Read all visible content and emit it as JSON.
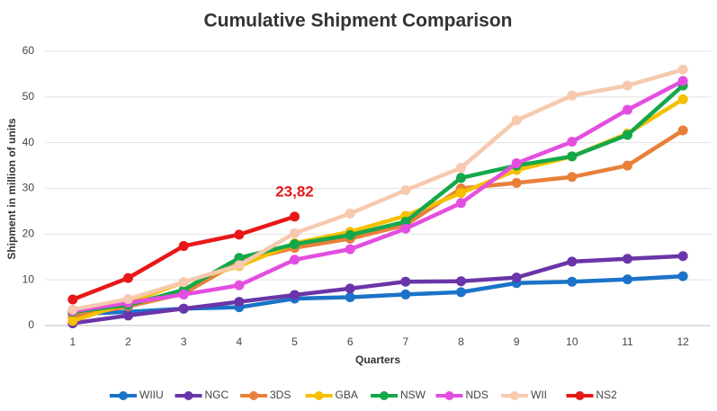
{
  "chart_data": {
    "type": "line",
    "title": "Cumulative Shipment Comparison",
    "x_label": "Quarters",
    "y_label": "Shipment in million of units",
    "categories": [
      "1",
      "2",
      "3",
      "4",
      "5",
      "6",
      "7",
      "8",
      "9",
      "10",
      "11",
      "12"
    ],
    "series": [
      {
        "name": "WIIU",
        "color": "#1a73c8",
        "values": [
          2.5,
          3.0,
          3.7,
          4.0,
          5.9,
          6.2,
          6.8,
          7.3,
          9.3,
          9.6,
          10.1,
          10.8
        ]
      },
      {
        "name": "NGC",
        "color": "#6a35a8",
        "values": [
          0.5,
          2.2,
          3.7,
          5.2,
          6.7,
          8.1,
          9.6,
          9.7,
          10.5,
          14.0,
          14.6,
          15.2
        ]
      },
      {
        "name": "3DS",
        "color": "#e8803a",
        "values": [
          2.0,
          4.2,
          7.0,
          14.0,
          17.0,
          19.0,
          22.0,
          30.0,
          31.2,
          32.5,
          35.0,
          42.7
        ]
      },
      {
        "name": "GBA",
        "color": "#f5c000",
        "values": [
          1.0,
          5.0,
          9.5,
          13.0,
          18.0,
          20.5,
          24.0,
          29.0,
          34.0,
          37.0,
          42.0,
          49.5
        ]
      },
      {
        "name": "NSW",
        "color": "#14a84a",
        "values": [
          3.0,
          4.5,
          7.8,
          14.8,
          17.8,
          19.8,
          22.7,
          32.3,
          35.0,
          37.0,
          41.7,
          52.5
        ]
      },
      {
        "name": "NDS",
        "color": "#e44ee0",
        "values": [
          3.2,
          5.0,
          6.8,
          8.8,
          14.4,
          16.7,
          21.2,
          26.8,
          35.5,
          40.2,
          47.2,
          53.5
        ]
      },
      {
        "name": "WII",
        "color": "#f7c9ae",
        "values": [
          3.5,
          5.8,
          9.5,
          13.2,
          20.2,
          24.5,
          29.6,
          34.5,
          44.9,
          50.3,
          52.5,
          56.0
        ]
      },
      {
        "name": "NS2",
        "color": "#e81818",
        "values": [
          5.7,
          10.4,
          17.4,
          19.9,
          23.82,
          null,
          null,
          null,
          null,
          null,
          null,
          null
        ],
        "value_labels": [
          null,
          null,
          null,
          null,
          "23,82",
          null,
          null,
          null,
          null,
          null,
          null,
          null
        ]
      }
    ],
    "ylim": [
      0,
      60
    ],
    "yticks": [
      0,
      10,
      20,
      30,
      40,
      50,
      60
    ],
    "grid": true,
    "legend": "bottom"
  }
}
